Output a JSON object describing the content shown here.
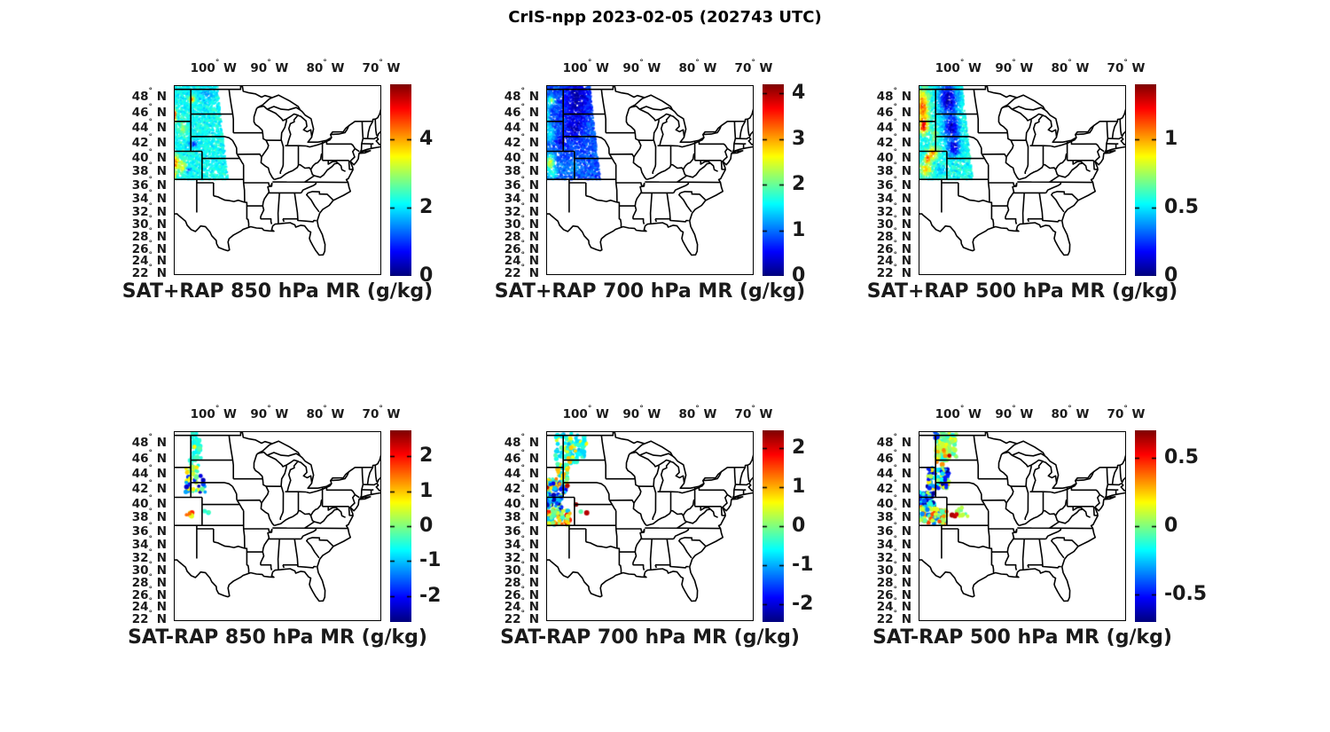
{
  "figure_title": "CrIS-npp 2023-02-05 (202743 UTC)",
  "axes": {
    "deg": "°",
    "lon": {
      "labels": [
        "100",
        "90",
        "80",
        "70"
      ],
      "values": [
        -100,
        -90,
        -80,
        -70
      ],
      "hemisphere": "W"
    },
    "lat": {
      "labels": [
        "48",
        "46",
        "44",
        "42",
        "40",
        "38",
        "36",
        "34",
        "32",
        "30",
        "28",
        "26",
        "24",
        "22"
      ],
      "values": [
        48,
        46,
        44,
        42,
        40,
        38,
        36,
        34,
        32,
        30,
        28,
        26,
        24,
        22
      ],
      "hemisphere": "N"
    },
    "lon_range": [
      -107.1,
      -70.0
    ],
    "lat_range": [
      21.8,
      49.5
    ],
    "projection": "mercator",
    "grid": false
  },
  "chart_data": [
    {
      "id": "sat_plus_rap_850",
      "row": 0,
      "col": 0,
      "title": "SAT+RAP 850 hPa MR (g/kg)",
      "type": "scatter-map",
      "units": "g/kg",
      "colorbar": {
        "colormap": "jet",
        "min": 0,
        "max": 5.6,
        "tick_values": [
          0,
          2,
          4
        ],
        "tick_labels": [
          "0",
          "2",
          "4"
        ]
      },
      "swath": {
        "lat_range": [
          37.0,
          49.5
        ],
        "right_edge_lon_at": [
          [
            -97.4,
            37.0
          ],
          [
            -99.3,
            49.5
          ]
        ],
        "n": 3200,
        "base": 2.15,
        "noise": 0.35,
        "blobs": [
          [
            -103.9,
            47.8,
            0.4,
            0.4,
            4.7
          ],
          [
            -101.3,
            48.4,
            1.3,
            0.9,
            1.6
          ],
          [
            -107.0,
            45.8,
            0.35,
            0.8,
            4.9
          ],
          [
            -105.5,
            44.2,
            0.7,
            0.9,
            3.0
          ],
          [
            -103.6,
            42.0,
            0.9,
            0.5,
            1.05
          ],
          [
            -106.8,
            39.4,
            0.5,
            1.0,
            4.5
          ],
          [
            -105.6,
            38.9,
            0.7,
            0.9,
            3.6
          ],
          [
            -104.4,
            38.4,
            0.5,
            0.4,
            1.1
          ],
          [
            -106.9,
            37.6,
            0.3,
            0.4,
            4.2
          ],
          [
            -100.9,
            39.8,
            1.3,
            1.6,
            2.1
          ]
        ]
      }
    },
    {
      "id": "sat_plus_rap_700",
      "row": 0,
      "col": 1,
      "title": "SAT+RAP 700 hPa MR (g/kg)",
      "type": "scatter-map",
      "units": "g/kg",
      "colorbar": {
        "colormap": "jet",
        "min": 0,
        "max": 4.2,
        "tick_values": [
          0,
          1,
          2,
          3,
          4
        ],
        "tick_labels": [
          "0",
          "1",
          "2",
          "3",
          "4"
        ]
      },
      "swath": {
        "lat_range": [
          37.0,
          49.5
        ],
        "right_edge_lon_at": [
          [
            -97.4,
            37.0
          ],
          [
            -99.3,
            49.5
          ]
        ],
        "n": 3200,
        "base": 0.85,
        "noise": 0.25,
        "blobs": [
          [
            -101.7,
            47.8,
            2.0,
            2.3,
            0.2
          ],
          [
            -102.2,
            44.3,
            1.6,
            1.7,
            0.3
          ],
          [
            -106.2,
            47.6,
            0.5,
            0.5,
            2.4
          ],
          [
            -106.9,
            45.8,
            0.4,
            1.5,
            1.6
          ],
          [
            -106.5,
            43.4,
            0.8,
            1.2,
            1.5
          ],
          [
            -106.4,
            39.4,
            0.8,
            1.1,
            2.6
          ],
          [
            -105.9,
            38.0,
            0.8,
            0.8,
            1.9
          ],
          [
            -104.3,
            42.4,
            0.9,
            0.7,
            0.35
          ],
          [
            -104.0,
            38.7,
            1.2,
            1.0,
            1.0
          ],
          [
            -102.0,
            38.8,
            0.9,
            0.9,
            1.15
          ]
        ]
      }
    },
    {
      "id": "sat_plus_rap_500",
      "row": 0,
      "col": 2,
      "title": "SAT+RAP 500 hPa MR (g/kg)",
      "type": "scatter-map",
      "units": "g/kg",
      "colorbar": {
        "colormap": "jet",
        "min": 0,
        "max": 1.4,
        "tick_values": [
          0,
          0.5,
          1
        ],
        "tick_labels": [
          "0",
          "0.5",
          "1"
        ]
      },
      "swath": {
        "lat_range": [
          37.0,
          49.5
        ],
        "right_edge_lon_at": [
          [
            -97.4,
            37.0
          ],
          [
            -99.3,
            49.5
          ]
        ],
        "n": 3200,
        "base": 0.55,
        "noise": 0.1,
        "blobs": [
          [
            -106.4,
            47.0,
            1.0,
            1.8,
            1.1
          ],
          [
            -106.2,
            44.6,
            0.7,
            1.1,
            1.3
          ],
          [
            -101.8,
            47.8,
            1.6,
            1.9,
            0.07
          ],
          [
            -101.2,
            44.2,
            1.3,
            1.6,
            0.08
          ],
          [
            -100.8,
            41.5,
            1.1,
            1.2,
            0.1
          ],
          [
            -104.6,
            40.7,
            0.8,
            0.8,
            1.05
          ],
          [
            -105.5,
            39.9,
            0.5,
            0.5,
            1.25
          ],
          [
            -105.8,
            38.4,
            1.0,
            0.9,
            0.95
          ],
          [
            -103.0,
            38.3,
            0.9,
            0.8,
            0.45
          ],
          [
            -107.0,
            37.4,
            0.3,
            0.4,
            0.65
          ],
          [
            -104.2,
            43.3,
            0.5,
            0.8,
            0.75
          ]
        ]
      }
    },
    {
      "id": "sat_minus_rap_850",
      "row": 1,
      "col": 0,
      "title": "SAT-RAP 850 hPa MR (g/kg)",
      "type": "scatter-map",
      "units": "g/kg",
      "colorbar": {
        "colormap": "jet",
        "min": -2.75,
        "max": 2.75,
        "tick_values": [
          2,
          1,
          0,
          -1,
          -2
        ],
        "tick_labels": [
          "2",
          "1",
          "0",
          "-1",
          "-2"
        ]
      },
      "dot_radius": 2.3,
      "clusters": [
        [
          -103.9,
          -102.2,
          45.8,
          49.3,
          42,
          [
            -0.55,
            -0.55,
            -0.6,
            -0.3,
            -0.45
          ]
        ],
        [
          -104.2,
          -102.6,
          44.3,
          46.0,
          10,
          [
            -0.5,
            0.6,
            -0.3
          ]
        ],
        [
          -104.9,
          -103.5,
          43.9,
          45.2,
          11,
          [
            0.7,
            0.9,
            0.3,
            -0.2
          ]
        ],
        [
          -105.2,
          -101.3,
          41.7,
          43.9,
          30,
          [
            -1.9,
            -2.3,
            -0.6,
            -0.1,
            0.6,
            -1.2
          ]
        ],
        [
          -105.0,
          -103.7,
          38.2,
          39.0,
          8,
          [
            1.5,
            1.8,
            0.6,
            1.1
          ]
        ],
        [
          -101.8,
          -100.6,
          38.6,
          39.1,
          3,
          [
            -0.5,
            -0.1
          ]
        ]
      ],
      "points": [
        [
          -103.4,
          47.6,
          0.7,
          2.3
        ],
        [
          -103.0,
          45.0,
          0.8,
          2.3
        ]
      ]
    },
    {
      "id": "sat_minus_rap_700",
      "row": 1,
      "col": 1,
      "title": "SAT-RAP 700 hPa MR (g/kg)",
      "type": "scatter-map",
      "units": "g/kg",
      "colorbar": {
        "colormap": "jet",
        "min": -2.45,
        "max": 2.45,
        "tick_values": [
          2,
          1,
          0,
          -1,
          -2
        ],
        "tick_labels": [
          "2",
          "1",
          "0",
          "-1",
          "-2"
        ]
      },
      "dot_radius": 2.3,
      "clusters": [
        [
          -105.5,
          -100.0,
          45.9,
          49.4,
          85,
          [
            -0.7,
            -0.7,
            -0.5,
            -0.3,
            0.5,
            -0.9
          ]
        ],
        [
          -103.4,
          -101.6,
          45.5,
          47.7,
          22,
          [
            0.6,
            0.9,
            -0.5,
            -0.7
          ]
        ],
        [
          -105.2,
          -103.2,
          43.4,
          45.6,
          30,
          [
            -0.7,
            0.6,
            0.9,
            -0.4,
            -0.2
          ]
        ],
        [
          -107.5,
          -103.4,
          41.5,
          43.5,
          75,
          [
            -0.8,
            -1.8,
            0.8,
            1.1,
            -0.3,
            -1.3,
            0.4
          ]
        ],
        [
          -107.5,
          -104.3,
          39.2,
          41.5,
          55,
          [
            -1.6,
            -0.9,
            -2.2,
            -0.5,
            0.2
          ]
        ],
        [
          -107.5,
          -102.8,
          37.1,
          39.2,
          90,
          [
            0.9,
            1.3,
            0.5,
            -0.2,
            1.7,
            0.1,
            -0.8
          ]
        ]
      ],
      "points": [
        [
          -106.9,
          42.35,
          2.2,
          2.2
        ],
        [
          -103.3,
          42.6,
          2.2,
          2.6
        ],
        [
          -101.75,
          40.0,
          2.35,
          2.6
        ],
        [
          -99.85,
          38.8,
          2.2,
          3.0
        ],
        [
          -100.9,
          39.0,
          -0.2,
          2.6
        ]
      ]
    },
    {
      "id": "sat_minus_rap_500",
      "row": 1,
      "col": 2,
      "title": "SAT-RAP 500 hPa MR (g/kg)",
      "type": "scatter-map",
      "units": "g/kg",
      "colorbar": {
        "colormap": "jet",
        "min": -0.7,
        "max": 0.7,
        "tick_values": [
          0.5,
          0,
          -0.5
        ],
        "tick_labels": [
          "0.5",
          "0",
          "-0.5"
        ]
      },
      "dot_radius": 2.3,
      "clusters": [
        [
          -104.0,
          -100.3,
          45.9,
          49.4,
          135,
          [
            0.02,
            0.0,
            0.05,
            -0.05,
            0.1,
            0.15,
            -0.12
          ]
        ],
        [
          -104.2,
          -103.5,
          48.7,
          49.4,
          4,
          [
            -0.45,
            -0.4
          ]
        ],
        [
          -103.9,
          -102.3,
          45.2,
          47.4,
          6,
          [
            0.32,
            0.28,
            0.38
          ]
        ],
        [
          -105.5,
          -101.6,
          42.2,
          44.9,
          95,
          [
            -0.45,
            -0.65,
            0.05,
            0.2,
            -0.2,
            -0.5,
            0.12,
            -0.3
          ]
        ],
        [
          -107.5,
          -104.2,
          39.6,
          41.7,
          60,
          [
            -0.5,
            -0.3,
            -0.65,
            -0.15,
            -0.45,
            0.05
          ]
        ],
        [
          -107.5,
          -102.2,
          37.2,
          39.6,
          95,
          [
            0.15,
            0.05,
            0.3,
            -0.1,
            -0.35,
            0.45,
            0.1,
            -0.05
          ]
        ],
        [
          -100.3,
          -98.3,
          38.3,
          39.6,
          12,
          [
            0.02,
            0.1,
            -0.05
          ]
        ]
      ],
      "points": [
        [
          -101.6,
          46.5,
          0.6,
          2.4
        ],
        [
          -102.6,
          47.2,
          0.35,
          2.2
        ],
        [
          -101.1,
          38.5,
          0.65,
          3.0
        ],
        [
          -100.6,
          38.35,
          0.62,
          2.6
        ],
        [
          -100.3,
          38.6,
          0.58,
          2.4
        ],
        [
          -102.1,
          39.0,
          0.4,
          2.2
        ]
      ]
    }
  ]
}
